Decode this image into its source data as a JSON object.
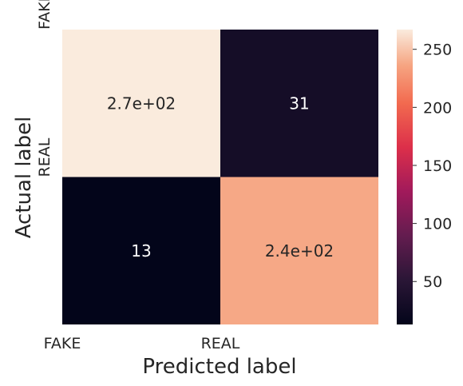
{
  "chart_data": {
    "type": "heatmap",
    "title": "",
    "xlabel": "Predicted label",
    "ylabel": "Actual label",
    "x_categories": [
      "FAKE",
      "REAL"
    ],
    "y_categories": [
      "FAKE",
      "REAL"
    ],
    "values": [
      [
        267,
        31
      ],
      [
        13,
        238
      ]
    ],
    "annotations": [
      [
        "2.7e+02",
        "31"
      ],
      [
        "13",
        "2.4e+02"
      ]
    ],
    "colorbar": {
      "min": 13,
      "max": 267,
      "ticks": [
        50,
        100,
        150,
        200,
        250
      ],
      "tick_labels": [
        "50",
        "100",
        "150",
        "200",
        "250"
      ],
      "colormap": "rocket"
    },
    "grid": false,
    "legend": "colorbar-right"
  }
}
